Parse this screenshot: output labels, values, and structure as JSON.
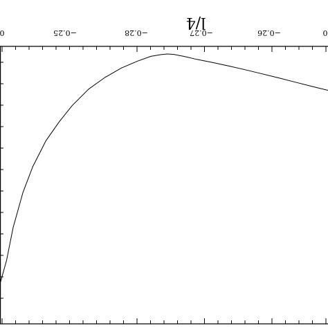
{
  "chart_data": {
    "type": "line",
    "title": "",
    "orientation": "mirrored (image flipped horizontally and vertically)",
    "x_axis": {
      "label": "l/4",
      "position": "top",
      "ticks": [
        "0",
        "−0.25",
        "−0.28",
        "−0.27",
        "−0.26",
        "0"
      ]
    },
    "y_axis": {
      "label": "",
      "ticks": []
    },
    "grid": false,
    "legend": "none",
    "series": [
      {
        "x": [
          0.0,
          0.02,
          0.04,
          0.07,
          0.1,
          0.14,
          0.18,
          0.22,
          0.27,
          0.32,
          0.37,
          0.42,
          0.46,
          0.49,
          0.51,
          0.53,
          0.56,
          0.6,
          0.65,
          0.7,
          0.75,
          0.8,
          0.85,
          0.9,
          0.95,
          1.0
        ],
        "y": [
          0.02,
          0.12,
          0.26,
          0.41,
          0.52,
          0.63,
          0.71,
          0.78,
          0.85,
          0.9,
          0.94,
          0.97,
          0.99,
          0.997,
          1.0,
          0.998,
          0.99,
          0.977,
          0.963,
          0.948,
          0.932,
          0.915,
          0.898,
          0.88,
          0.862,
          0.845
        ]
      }
    ]
  }
}
